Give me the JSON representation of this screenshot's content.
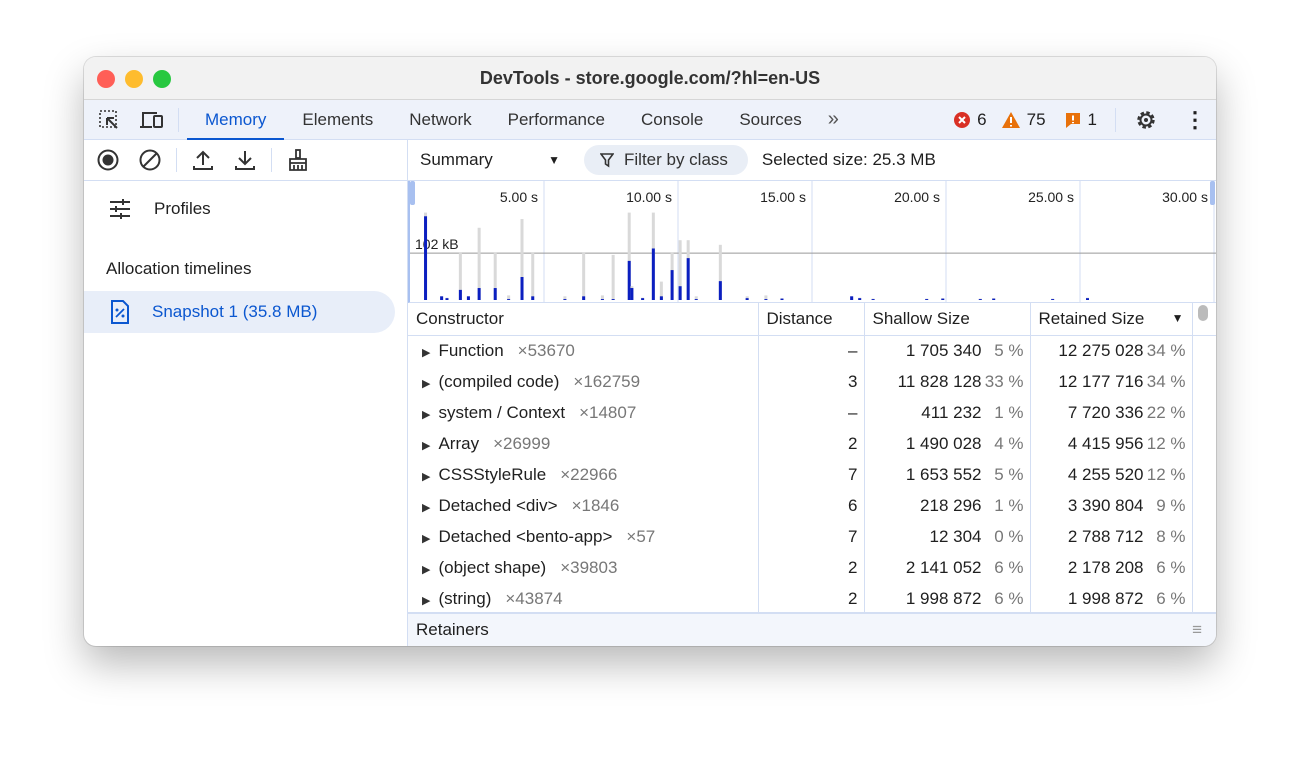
{
  "window": {
    "title": "DevTools - store.google.com/?hl=en-US"
  },
  "tabs": [
    {
      "label": "Memory",
      "active": true
    },
    {
      "label": "Elements"
    },
    {
      "label": "Network"
    },
    {
      "label": "Performance"
    },
    {
      "label": "Console"
    },
    {
      "label": "Sources"
    }
  ],
  "status": {
    "errors": "6",
    "warnings": "75",
    "issues": "1"
  },
  "toolbar": {
    "view": "Summary",
    "filter_label": "Filter by class",
    "selected_size": "Selected size: 25.3 MB"
  },
  "sidebar": {
    "profiles": "Profiles",
    "section": "Allocation timelines",
    "snapshot": "Snapshot 1 (35.8 MB)"
  },
  "timeline": {
    "ticks": [
      "5.00 s",
      "10.00 s",
      "15.00 s",
      "20.00 s",
      "25.00 s",
      "30.00 s"
    ],
    "scale_label": "102 kB",
    "bars_kB": [
      [
        0.3,
        190,
        182
      ],
      [
        0.9,
        8,
        8
      ],
      [
        1.1,
        5,
        4
      ],
      [
        1.6,
        104,
        22
      ],
      [
        1.9,
        8,
        8
      ],
      [
        2.3,
        157,
        26
      ],
      [
        2.9,
        104,
        26
      ],
      [
        3.4,
        10,
        2
      ],
      [
        3.9,
        176,
        50
      ],
      [
        4.3,
        104,
        8
      ],
      [
        5.5,
        8,
        2
      ],
      [
        6.2,
        104,
        8
      ],
      [
        6.9,
        10,
        2
      ],
      [
        7.3,
        98,
        2
      ],
      [
        7.9,
        190,
        85
      ],
      [
        8.0,
        30,
        26
      ],
      [
        8.4,
        5,
        4
      ],
      [
        8.8,
        190,
        112
      ],
      [
        9.1,
        40,
        8
      ],
      [
        9.5,
        104,
        65
      ],
      [
        9.8,
        130,
        30
      ],
      [
        10.1,
        130,
        91
      ],
      [
        10.4,
        8,
        2
      ],
      [
        11.3,
        120,
        41
      ],
      [
        12.3,
        8,
        4
      ],
      [
        13.0,
        10,
        2
      ],
      [
        13.6,
        4,
        3
      ],
      [
        16.2,
        8,
        8
      ],
      [
        16.5,
        5,
        4
      ],
      [
        17.0,
        3,
        2
      ],
      [
        19.0,
        3,
        2
      ],
      [
        19.6,
        4,
        3
      ],
      [
        21.0,
        3,
        2
      ],
      [
        21.5,
        4,
        3
      ],
      [
        23.7,
        3,
        2
      ],
      [
        25.0,
        5,
        4
      ]
    ]
  },
  "table": {
    "headers": [
      "Constructor",
      "Distance",
      "Shallow Size",
      "Retained Size"
    ],
    "rows": [
      {
        "name": "Function",
        "count": "×53670",
        "distance": "–",
        "shallow": "1 705 340",
        "shallow_pct": "5 %",
        "retained": "12 275 028",
        "retained_pct": "34 %"
      },
      {
        "name": "(compiled code)",
        "count": "×162759",
        "distance": "3",
        "shallow": "11 828 128",
        "shallow_pct": "33 %",
        "retained": "12 177 716",
        "retained_pct": "34 %"
      },
      {
        "name": "system / Context",
        "count": "×14807",
        "distance": "–",
        "shallow": "411 232",
        "shallow_pct": "1 %",
        "retained": "7 720 336",
        "retained_pct": "22 %"
      },
      {
        "name": "Array",
        "count": "×26999",
        "distance": "2",
        "shallow": "1 490 028",
        "shallow_pct": "4 %",
        "retained": "4 415 956",
        "retained_pct": "12 %"
      },
      {
        "name": "CSSStyleRule",
        "count": "×22966",
        "distance": "7",
        "shallow": "1 653 552",
        "shallow_pct": "5 %",
        "retained": "4 255 520",
        "retained_pct": "12 %"
      },
      {
        "name": "Detached <div>",
        "count": "×1846",
        "distance": "6",
        "shallow": "218 296",
        "shallow_pct": "1 %",
        "retained": "3 390 804",
        "retained_pct": "9 %"
      },
      {
        "name": "Detached <bento-app>",
        "count": "×57",
        "distance": "7",
        "shallow": "12 304",
        "shallow_pct": "0 %",
        "retained": "2 788 712",
        "retained_pct": "8 %"
      },
      {
        "name": "(object shape)",
        "count": "×39803",
        "distance": "2",
        "shallow": "2 141 052",
        "shallow_pct": "6 %",
        "retained": "2 178 208",
        "retained_pct": "6 %"
      },
      {
        "name": "(string)",
        "count": "×43874",
        "distance": "2",
        "shallow": "1 998 872",
        "shallow_pct": "6 %",
        "retained": "1 998 872",
        "retained_pct": "6 %"
      }
    ]
  },
  "retainers": "Retainers",
  "colors": {
    "accent": "#0b57d0",
    "live_bar": "#0b1fc0",
    "total_bar": "#d9d9d9"
  }
}
